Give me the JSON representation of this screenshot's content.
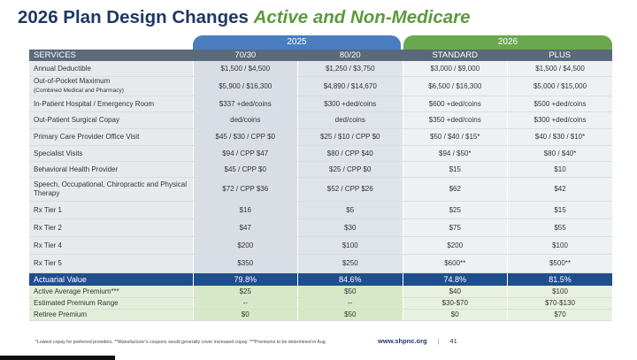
{
  "title": {
    "main": "2026 Plan Design Changes ",
    "accent": "Active and Non-Medicare"
  },
  "year_tabs": {
    "y2025": "2025",
    "y2026": "2026"
  },
  "columns": {
    "services": "SERVICES",
    "c1": "70/30",
    "c2": "80/20",
    "c3": "STANDARD",
    "c4": "PLUS"
  },
  "rows": [
    {
      "service": "Annual Deductible",
      "c1": "$1,500 / $4,500",
      "c2": "$1,250 / $3,750",
      "c3": "$3,000 / $9,000",
      "c4": "$1,500 / $4,500"
    },
    {
      "service": "Out-of-Pocket Maximum",
      "service_sub": "(Combined Medical and Pharmacy)",
      "c1": "$5,900 / $16,300",
      "c2": "$4,890 / $14,670",
      "c3": "$6,500 / $16,300",
      "c4": "$5,000 / $15,000"
    },
    {
      "service": "In-Patient Hospital / Emergency Room",
      "c1": "$337 +ded/coins",
      "c2": "$300 +ded/coins",
      "c3": "$600 +ded/coins",
      "c4": "$500 +ded/coins"
    },
    {
      "service": "Out-Patient Surgical Copay",
      "c1": "ded/coins",
      "c2": "ded/coins",
      "c3": "$350 +ded/coins",
      "c4": "$300 +ded/coins"
    },
    {
      "service": "Primary Care Provider Office Visit",
      "c1": "$45 / $30 / CPP $0",
      "c2": "$25 / $10 / CPP $0",
      "c3": "$50 / $40 / $15*",
      "c4": "$40 / $30 / $10*"
    },
    {
      "service": "Specialist Visits",
      "c1": "$94 / CPP $47",
      "c2": "$80 / CPP $40",
      "c3": "$94 / $50*",
      "c4": "$80 / $40*"
    },
    {
      "service": "Behavioral Health Provider",
      "c1": "$45 / CPP $0",
      "c2": "$25 / CPP $0",
      "c3": "$15",
      "c4": "$10"
    },
    {
      "service": "Speech, Occupational, Chiropractic and Physical Therapy",
      "c1": "$72 / CPP $36",
      "c2": "$52 / CPP $26",
      "c3": "$62",
      "c4": "$42"
    },
    {
      "service": "Rx Tier 1",
      "c1": "$16",
      "c2": "$5",
      "c3": "$25",
      "c4": "$15"
    },
    {
      "service": "Rx Tier 2",
      "c1": "$47",
      "c2": "$30",
      "c3": "$75",
      "c4": "$55"
    },
    {
      "service": "Rx Tier 4",
      "c1": "$200",
      "c2": "$100",
      "c3": "$200",
      "c4": "$100"
    },
    {
      "service": "Rx Tier 5",
      "c1": "$350",
      "c2": "$250",
      "c3": "$600**",
      "c4": "$500**"
    }
  ],
  "actuarial": {
    "service": "Actuarial Value",
    "c1": "79.8%",
    "c2": "84.6%",
    "c3": "74.8%",
    "c4": "81.5%"
  },
  "premium_rows": [
    {
      "service": "Active Average Premium***",
      "c1": "$25",
      "c2": "$50",
      "c3": "$40",
      "c4": "$100"
    },
    {
      "service": "Estimated Premium Range",
      "c1": "--",
      "c2": "--",
      "c3": "$30-$70",
      "c4": "$70-$130"
    },
    {
      "service": "Retiree Premium",
      "c1": "$0",
      "c2": "$50",
      "c3": "$0",
      "c4": "$70"
    }
  ],
  "footer": {
    "note": "*Lowest copay for preferred providers.  **Manufacturer's coupons would generally cover increased copay.  ***Premiums to be determined in Aug.",
    "url": "www.shpnc.org",
    "separator": "|",
    "page": "41"
  },
  "colors": {
    "navy": "#1f3864",
    "green": "#5b9b3c",
    "tab_2025": "#4a7ec0",
    "tab_2026": "#6aa84f",
    "actuarial_bar": "#1f4e8c"
  }
}
